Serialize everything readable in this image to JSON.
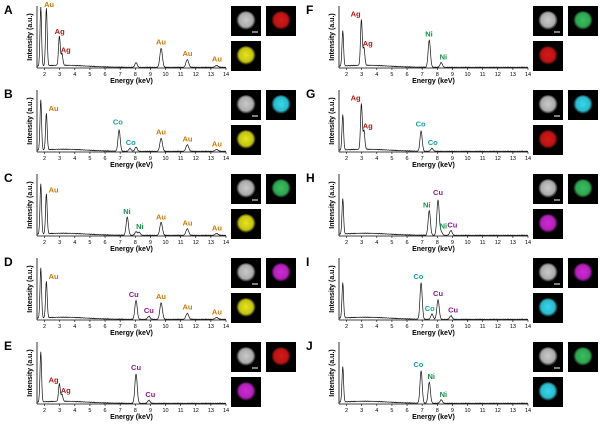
{
  "colors": {
    "Au": "#c8780a",
    "Ag": "#b01818",
    "Co": "#18a0a8",
    "Ni": "#18904a",
    "Cu": "#8a1a8a",
    "spectrum": "#111111"
  },
  "chart_data": {
    "type": "line",
    "shared": {
      "xlabel": "Energy (keV)",
      "ylabel": "Intensity (a.u.)",
      "xlim": [
        1.5,
        14
      ],
      "xticks": [
        2,
        3,
        4,
        5,
        6,
        7,
        8,
        9,
        10,
        11,
        12,
        13,
        14
      ]
    },
    "panels": [
      {
        "id": "A",
        "label": "A",
        "peaks": [
          {
            "e": 1.75,
            "h": 1.0
          },
          {
            "e": 2.12,
            "h": 0.98
          },
          {
            "e": 2.98,
            "h": 0.5
          },
          {
            "e": 3.15,
            "h": 0.2
          },
          {
            "e": 8.05,
            "h": 0.08
          },
          {
            "e": 9.71,
            "h": 0.32
          },
          {
            "e": 11.44,
            "h": 0.13
          },
          {
            "e": 13.38,
            "h": 0.03
          }
        ],
        "annotations": [
          {
            "text": "Au",
            "el": "Au",
            "e": 2.3,
            "h": 1.02
          },
          {
            "text": "Ag",
            "el": "Ag",
            "e": 3.0,
            "h": 0.56
          },
          {
            "text": "Ag",
            "el": "Ag",
            "e": 3.4,
            "h": 0.25
          },
          {
            "text": "Au",
            "el": "Au",
            "e": 9.7,
            "h": 0.38
          },
          {
            "text": "Au",
            "el": "Au",
            "e": 11.45,
            "h": 0.19
          },
          {
            "text": "Au",
            "el": "Au",
            "e": 13.4,
            "h": 0.09
          }
        ],
        "maps": [
          {
            "kind": "Grey"
          },
          {
            "kind": "Ag"
          },
          {
            "kind": "Au"
          }
        ]
      },
      {
        "id": "B",
        "label": "B",
        "peaks": [
          {
            "e": 1.75,
            "h": 0.85
          },
          {
            "e": 2.12,
            "h": 0.62
          },
          {
            "e": 6.93,
            "h": 0.36
          },
          {
            "e": 7.65,
            "h": 0.05
          },
          {
            "e": 8.05,
            "h": 0.07
          },
          {
            "e": 9.71,
            "h": 0.22
          },
          {
            "e": 11.44,
            "h": 0.11
          },
          {
            "e": 13.38,
            "h": 0.03
          }
        ],
        "annotations": [
          {
            "text": "Au",
            "el": "Au",
            "e": 2.6,
            "h": 0.68
          },
          {
            "text": "Co",
            "el": "Co",
            "e": 6.85,
            "h": 0.45
          },
          {
            "text": "Co",
            "el": "Co",
            "e": 7.7,
            "h": 0.1
          },
          {
            "text": "Au",
            "el": "Au",
            "e": 9.7,
            "h": 0.28
          },
          {
            "text": "Au",
            "el": "Au",
            "e": 11.45,
            "h": 0.16
          },
          {
            "text": "Au",
            "el": "Au",
            "e": 13.4,
            "h": 0.08
          }
        ],
        "maps": [
          {
            "kind": "Grey"
          },
          {
            "kind": "Co"
          },
          {
            "kind": "Au"
          }
        ]
      },
      {
        "id": "C",
        "label": "C",
        "peaks": [
          {
            "e": 1.75,
            "h": 0.85
          },
          {
            "e": 2.12,
            "h": 0.68
          },
          {
            "e": 7.47,
            "h": 0.31
          },
          {
            "e": 8.05,
            "h": 0.06
          },
          {
            "e": 8.26,
            "h": 0.05
          },
          {
            "e": 9.71,
            "h": 0.22
          },
          {
            "e": 11.44,
            "h": 0.11
          },
          {
            "e": 13.38,
            "h": 0.03
          }
        ],
        "annotations": [
          {
            "text": "Au",
            "el": "Au",
            "e": 2.6,
            "h": 0.72
          },
          {
            "text": "Ni",
            "el": "Ni",
            "e": 7.45,
            "h": 0.36
          },
          {
            "text": "Ni",
            "el": "Ni",
            "e": 8.3,
            "h": 0.1
          },
          {
            "text": "Au",
            "el": "Au",
            "e": 9.7,
            "h": 0.26
          },
          {
            "text": "Au",
            "el": "Au",
            "e": 11.45,
            "h": 0.16
          },
          {
            "text": "Au",
            "el": "Au",
            "e": 13.4,
            "h": 0.08
          }
        ],
        "maps": [
          {
            "kind": "Grey"
          },
          {
            "kind": "Ni"
          },
          {
            "kind": "Au"
          }
        ]
      },
      {
        "id": "D",
        "label": "D",
        "peaks": [
          {
            "e": 1.75,
            "h": 0.85
          },
          {
            "e": 2.12,
            "h": 0.62
          },
          {
            "e": 8.05,
            "h": 0.32
          },
          {
            "e": 8.9,
            "h": 0.05
          },
          {
            "e": 9.71,
            "h": 0.28
          },
          {
            "e": 11.44,
            "h": 0.1
          },
          {
            "e": 13.38,
            "h": 0.03
          }
        ],
        "annotations": [
          {
            "text": "Au",
            "el": "Au",
            "e": 2.6,
            "h": 0.68
          },
          {
            "text": "Cu",
            "el": "Cu",
            "e": 7.9,
            "h": 0.37
          },
          {
            "text": "Cu",
            "el": "Cu",
            "e": 8.9,
            "h": 0.1
          },
          {
            "text": "Au",
            "el": "Au",
            "e": 9.7,
            "h": 0.34
          },
          {
            "text": "Au",
            "el": "Au",
            "e": 11.45,
            "h": 0.16
          },
          {
            "text": "Au",
            "el": "Au",
            "e": 13.4,
            "h": 0.08
          }
        ],
        "maps": [
          {
            "kind": "Grey"
          },
          {
            "kind": "Cu"
          },
          {
            "kind": "Au"
          }
        ]
      },
      {
        "id": "E",
        "label": "E",
        "peaks": [
          {
            "e": 1.75,
            "h": 0.85
          },
          {
            "e": 2.98,
            "h": 0.3
          },
          {
            "e": 3.15,
            "h": 0.12
          },
          {
            "e": 8.05,
            "h": 0.5
          },
          {
            "e": 8.9,
            "h": 0.05
          }
        ],
        "annotations": [
          {
            "text": "Ag",
            "el": "Ag",
            "e": 2.6,
            "h": 0.35
          },
          {
            "text": "Ag",
            "el": "Ag",
            "e": 3.4,
            "h": 0.17
          },
          {
            "text": "Cu",
            "el": "Cu",
            "e": 8.05,
            "h": 0.56
          },
          {
            "text": "Cu",
            "el": "Cu",
            "e": 9.0,
            "h": 0.1
          }
        ],
        "maps": [
          {
            "kind": "Grey"
          },
          {
            "kind": "Ag"
          },
          {
            "kind": "Cu"
          }
        ]
      },
      {
        "id": "F",
        "label": "F",
        "peaks": [
          {
            "e": 1.75,
            "h": 0.6
          },
          {
            "e": 2.98,
            "h": 0.78
          },
          {
            "e": 3.15,
            "h": 0.3
          },
          {
            "e": 7.47,
            "h": 0.46
          },
          {
            "e": 8.26,
            "h": 0.08
          }
        ],
        "annotations": [
          {
            "text": "Ag",
            "el": "Ag",
            "e": 2.6,
            "h": 0.86
          },
          {
            "text": "Ag",
            "el": "Ag",
            "e": 3.4,
            "h": 0.36
          },
          {
            "text": "Ni",
            "el": "Ni",
            "e": 7.45,
            "h": 0.52
          },
          {
            "text": "Ni",
            "el": "Ni",
            "e": 8.4,
            "h": 0.13
          }
        ],
        "maps": [
          {
            "kind": "Grey"
          },
          {
            "kind": "Ni"
          },
          {
            "kind": "Ag"
          }
        ]
      },
      {
        "id": "G",
        "label": "G",
        "peaks": [
          {
            "e": 1.75,
            "h": 0.6
          },
          {
            "e": 2.98,
            "h": 0.78
          },
          {
            "e": 3.15,
            "h": 0.32
          },
          {
            "e": 6.93,
            "h": 0.34
          },
          {
            "e": 7.65,
            "h": 0.05
          }
        ],
        "annotations": [
          {
            "text": "Ag",
            "el": "Ag",
            "e": 2.6,
            "h": 0.86
          },
          {
            "text": "Ag",
            "el": "Ag",
            "e": 3.4,
            "h": 0.38
          },
          {
            "text": "Co",
            "el": "Co",
            "e": 6.9,
            "h": 0.42
          },
          {
            "text": "Co",
            "el": "Co",
            "e": 7.7,
            "h": 0.1
          }
        ],
        "maps": [
          {
            "kind": "Grey"
          },
          {
            "kind": "Co"
          },
          {
            "kind": "Ag"
          }
        ]
      },
      {
        "id": "H",
        "label": "H",
        "peaks": [
          {
            "e": 1.75,
            "h": 0.6
          },
          {
            "e": 7.47,
            "h": 0.42
          },
          {
            "e": 8.05,
            "h": 0.6
          },
          {
            "e": 8.26,
            "h": 0.06
          },
          {
            "e": 8.9,
            "h": 0.08
          }
        ],
        "annotations": [
          {
            "text": "Ni",
            "el": "Ni",
            "e": 7.3,
            "h": 0.47
          },
          {
            "text": "Cu",
            "el": "Cu",
            "e": 8.05,
            "h": 0.68
          },
          {
            "text": "Ni",
            "el": "Ni",
            "e": 8.4,
            "h": 0.11
          },
          {
            "text": "Cu",
            "el": "Cu",
            "e": 9.0,
            "h": 0.13
          }
        ],
        "maps": [
          {
            "kind": "Grey"
          },
          {
            "kind": "Ni"
          },
          {
            "kind": "Cu"
          }
        ]
      },
      {
        "id": "I",
        "label": "I",
        "peaks": [
          {
            "e": 1.75,
            "h": 0.6
          },
          {
            "e": 6.93,
            "h": 0.62
          },
          {
            "e": 7.65,
            "h": 0.09
          },
          {
            "e": 8.05,
            "h": 0.33
          },
          {
            "e": 8.9,
            "h": 0.06
          }
        ],
        "annotations": [
          {
            "text": "Co",
            "el": "Co",
            "e": 6.75,
            "h": 0.68
          },
          {
            "text": "Co",
            "el": "Co",
            "e": 7.5,
            "h": 0.14
          },
          {
            "text": "Cu",
            "el": "Cu",
            "e": 8.05,
            "h": 0.39
          },
          {
            "text": "Cu",
            "el": "Cu",
            "e": 9.05,
            "h": 0.11
          }
        ],
        "maps": [
          {
            "kind": "Grey"
          },
          {
            "kind": "Cu"
          },
          {
            "kind": "Co"
          }
        ]
      },
      {
        "id": "J",
        "label": "J",
        "peaks": [
          {
            "e": 1.75,
            "h": 0.6
          },
          {
            "e": 6.93,
            "h": 0.55
          },
          {
            "e": 7.47,
            "h": 0.36
          },
          {
            "e": 8.26,
            "h": 0.06
          }
        ],
        "annotations": [
          {
            "text": "Co",
            "el": "Co",
            "e": 6.75,
            "h": 0.61
          },
          {
            "text": "Ni",
            "el": "Ni",
            "e": 7.6,
            "h": 0.41
          },
          {
            "text": "Ni",
            "el": "Ni",
            "e": 8.4,
            "h": 0.1
          }
        ],
        "maps": [
          {
            "kind": "Grey"
          },
          {
            "kind": "Ni"
          },
          {
            "kind": "Co"
          }
        ]
      }
    ]
  }
}
